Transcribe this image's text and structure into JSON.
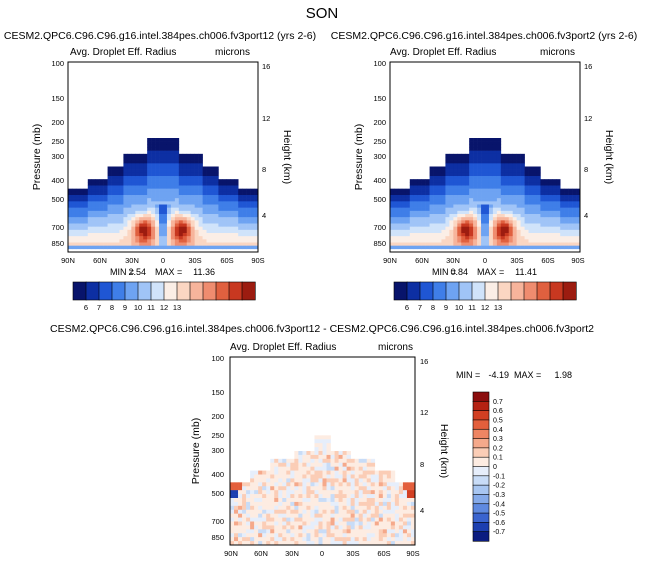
{
  "figure": {
    "title": "SON"
  },
  "chart_data": [
    {
      "type": "heatmap",
      "title": "CESM2.QPC6.C96.C96.g16.intel.384pes.ch006.fv3port12 (yrs 2-6)",
      "subtitle_left": "Avg. Droplet Eff. Radius",
      "subtitle_right": "microns",
      "ylabel": "Pressure (mb)",
      "y2label": "Height (km)",
      "x_ticks": [
        "90N",
        "60N",
        "30N",
        "0",
        "30S",
        "60S",
        "90S"
      ],
      "y_ticks": [
        "100",
        "150",
        "200",
        "250",
        "300",
        "400",
        "500",
        "700",
        "850"
      ],
      "y2_ticks": [
        "16",
        "12",
        "8",
        "4"
      ],
      "min_label": "MIN =",
      "min": "2.54",
      "max_label": "MAX =",
      "max": "11.36",
      "colorbar_labels": [
        "6",
        "7",
        "8",
        "9",
        "10",
        "11",
        "12",
        "13"
      ],
      "colorbar_colors": [
        "#08146b",
        "#0d2fa3",
        "#1f56d4",
        "#3f7ee8",
        "#6ea3f2",
        "#a0c4f7",
        "#d0e3fa",
        "#fbeee6",
        "#fbd6c2",
        "#f7b49b",
        "#ef8c6f",
        "#e0603f",
        "#c83820",
        "#9c1c10"
      ]
    },
    {
      "type": "heatmap",
      "title": "CESM2.QPC6.C96.C96.g16.intel.384pes.ch006.fv3port2 (yrs 2-6)",
      "subtitle_left": "Avg. Droplet Eff. Radius",
      "subtitle_right": "microns",
      "ylabel": "Pressure (mb)",
      "y2label": "Height (km)",
      "x_ticks": [
        "90N",
        "60N",
        "30N",
        "0",
        "30S",
        "60S",
        "90S"
      ],
      "y_ticks": [
        "100",
        "150",
        "200",
        "250",
        "300",
        "400",
        "500",
        "700",
        "850"
      ],
      "y2_ticks": [
        "16",
        "12",
        "8",
        "4"
      ],
      "min_label": "MIN =",
      "min": "0.84",
      "max_label": "MAX =",
      "max": "11.41",
      "colorbar_labels": [
        "6",
        "7",
        "8",
        "9",
        "10",
        "11",
        "12",
        "13"
      ],
      "colorbar_colors": [
        "#08146b",
        "#0d2fa3",
        "#1f56d4",
        "#3f7ee8",
        "#6ea3f2",
        "#a0c4f7",
        "#d0e3fa",
        "#fbeee6",
        "#fbd6c2",
        "#f7b49b",
        "#ef8c6f",
        "#e0603f",
        "#c83820",
        "#9c1c10"
      ]
    },
    {
      "type": "heatmap",
      "title": "CESM2.QPC6.C96.C96.g16.intel.384pes.ch006.fv3port12 - CESM2.QPC6.C96.C96.g16.intel.384pes.ch006.fv3port2",
      "subtitle_left": "Avg. Droplet Eff. Radius",
      "subtitle_right": "microns",
      "ylabel": "Pressure (mb)",
      "y2label": "Height (km)",
      "x_ticks": [
        "90N",
        "60N",
        "30N",
        "0",
        "30S",
        "60S",
        "90S"
      ],
      "y_ticks": [
        "100",
        "150",
        "200",
        "250",
        "300",
        "400",
        "500",
        "700",
        "850"
      ],
      "y2_ticks": [
        "16",
        "12",
        "8",
        "4"
      ],
      "min_label": "MIN =",
      "min": "-4.19",
      "max_label": "MAX =",
      "max": "1.98",
      "colorbar_labels": [
        "0.7",
        "0.6",
        "0.5",
        "0.4",
        "0.3",
        "0.2",
        "0.1",
        "0",
        "-0.1",
        "-0.2",
        "-0.3",
        "-0.4",
        "-0.5",
        "-0.6",
        "-0.7"
      ],
      "colorbar_colors": [
        "#8b0d0d",
        "#b52213",
        "#d23f22",
        "#e35f3c",
        "#ee8563",
        "#f5a98b",
        "#fbcdb6",
        "#fdece2",
        "#e6eefb",
        "#c8dcf7",
        "#a8c6f1",
        "#85aae9",
        "#5f8ae0",
        "#3a64cf",
        "#1c3fb0",
        "#0b1c80"
      ]
    }
  ]
}
